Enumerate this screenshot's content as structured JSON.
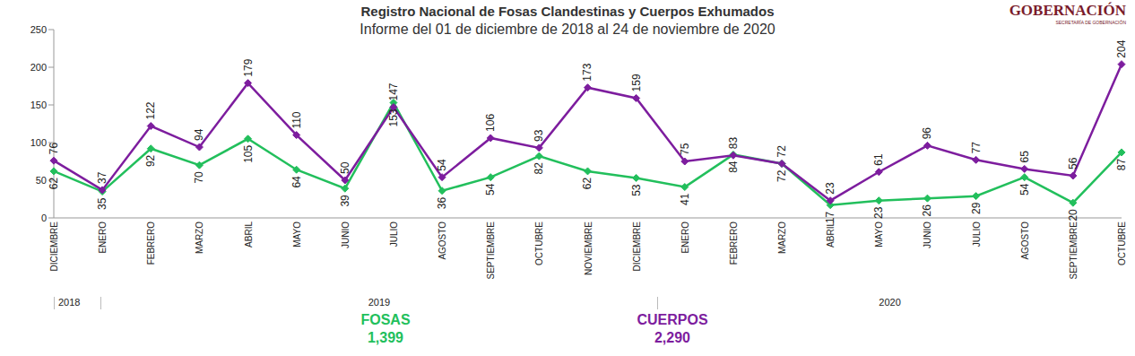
{
  "chart_data": {
    "type": "line",
    "title": "Registro Nacional de Fosas Clandestinas y Cuerpos Exhumados",
    "subtitle": "Informe del 01 de diciembre de 2018 al 24 de noviembre de 2020",
    "logo": {
      "text": "GOBERNACIÓN",
      "subtext": "SECRETARÍA DE GOBERNACIÓN"
    },
    "categories": [
      "DICIEMBRE",
      "ENERO",
      "FEBRERO",
      "MARZO",
      "ABRIL",
      "MAYO",
      "JUNIO",
      "JULIO",
      "AGOSTO",
      "SEPTIEMBRE",
      "OCTUBRE",
      "NOVIEMBRE",
      "DICIEMBRE",
      "ENERO",
      "FEBRERO",
      "MARZO",
      "ABRIL",
      "MAYO",
      "JUNIO",
      "JULIO",
      "AGOSTO",
      "SEPTIEMBRE",
      "OCTUBRE"
    ],
    "year_groups": [
      {
        "label": "2018",
        "count": 1
      },
      {
        "label": "2019",
        "count": 12
      },
      {
        "label": "2020",
        "count": 10
      }
    ],
    "series": [
      {
        "name": "FOSAS",
        "color": "#22bf5c",
        "marker": "diamond",
        "values": [
          62,
          35,
          92,
          70,
          105,
          64,
          39,
          153,
          36,
          54,
          82,
          62,
          53,
          41,
          84,
          72,
          17,
          23,
          26,
          29,
          54,
          20,
          87
        ],
        "total": 1399,
        "total_label": "1,399"
      },
      {
        "name": "CUERPOS",
        "color": "#7d1d9e",
        "marker": "diamond",
        "values": [
          76,
          37,
          122,
          94,
          179,
          110,
          50,
          147,
          54,
          106,
          93,
          173,
          159,
          75,
          83,
          72,
          23,
          61,
          96,
          77,
          65,
          56,
          204
        ],
        "total": 2290,
        "total_label": "2,290"
      }
    ],
    "ylim": [
      0,
      250
    ],
    "yticks": [
      0,
      50,
      100,
      150,
      200,
      250
    ],
    "grid": false,
    "data_labels": true
  }
}
